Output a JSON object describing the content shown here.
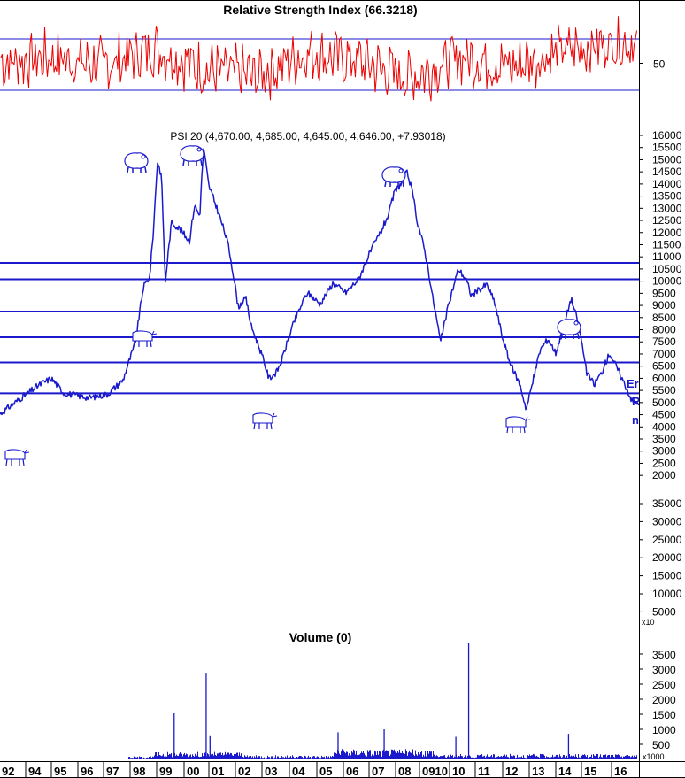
{
  "colors": {
    "rsi_line": "#ee0000",
    "psi_line": "#1a1acc",
    "level_lines": "#1a1acc",
    "volume_bars": "#1a1acc",
    "frame": "#000000",
    "background": "#ffffff"
  },
  "icons": [
    "bear-icon",
    "bull-icon"
  ],
  "chart_data": [
    {
      "type": "line",
      "title": "Relative Strength Index (66.3218)",
      "ylim": [
        0,
        100
      ],
      "reference_lines": [
        30,
        70
      ],
      "tick_labels": [
        "50"
      ],
      "tick_values": [
        50
      ],
      "series": [
        {
          "x": [
            "1992",
            "1994",
            "1996",
            "1998",
            "2000",
            "2002",
            "2004",
            "2006",
            "2008",
            "2010",
            "2012",
            "2014",
            "2016"
          ],
          "y": [
            50,
            55,
            48,
            62,
            45,
            40,
            58,
            52,
            38,
            55,
            47,
            60,
            66.3218
          ]
        }
      ],
      "grid": false
    },
    {
      "type": "line",
      "title": "PSI 20 (4,670.00, 4,685.00, 4,645.00, 4,646.00, +7.93018)",
      "yscale": "log",
      "ylim": [
        4200,
        16200
      ],
      "tick_labels": [
        "16000",
        "15500",
        "15000",
        "14500",
        "14000",
        "13500",
        "13000",
        "12500",
        "12000",
        "11500",
        "11000",
        "10500",
        "10000",
        "9500",
        "9000",
        "8500",
        "8000",
        "7500",
        "7000",
        "6500",
        "6000",
        "5500",
        "5000",
        "4500",
        "4000",
        "3500",
        "3000",
        "2500",
        "2000",
        "35000",
        "30000",
        "25000",
        "20000",
        "15000",
        "10000",
        "5000",
        "x10"
      ],
      "horizontal_levels": [
        8950,
        8300,
        7150,
        6350,
        5650,
        4900
      ],
      "annotations": [
        "Er",
        "R",
        "n"
      ],
      "series": [
        {
          "x": [
            1992.0,
            1992.6,
            1993.5,
            1994.0,
            1994.5,
            1995.5,
            1996.2,
            1996.8,
            1997.3,
            1997.6,
            1997.85,
            1998.0,
            1998.15,
            1998.3,
            1998.45,
            1998.7,
            1999.0,
            1999.4,
            1999.6,
            1999.8,
            1999.95,
            2000.15,
            2000.3,
            2000.6,
            2000.9,
            2001.3,
            2001.6,
            2001.8,
            2002.2,
            2002.5,
            2002.8,
            2003.0,
            2003.5,
            2004.0,
            2004.5,
            2005.0,
            2005.5,
            2006.0,
            2006.5,
            2006.9,
            2007.2,
            2007.4,
            2007.6,
            2007.9,
            2008.1,
            2008.3,
            2008.6,
            2008.9,
            2009.2,
            2009.5,
            2009.9,
            2010.2,
            2010.4,
            2010.7,
            2011.0,
            2011.3,
            2011.6,
            2011.9,
            2012.3,
            2012.55,
            2012.8,
            2013.1,
            2013.4,
            2013.7,
            2014.0,
            2014.3,
            2014.6,
            2014.9,
            2015.2,
            2015.5,
            2015.8,
            2016.1,
            2016.4,
            2016.7
          ],
          "y": [
            4450,
            4700,
            5080,
            5250,
            4900,
            4800,
            4880,
            5200,
            6200,
            8000,
            8400,
            10500,
            14300,
            13400,
            8100,
            10800,
            10500,
            9900,
            11700,
            11100,
            15200,
            12800,
            12200,
            11000,
            9800,
            7300,
            7600,
            6700,
            5900,
            5250,
            5400,
            5700,
            6850,
            7800,
            7400,
            8150,
            7800,
            8300,
            9500,
            10400,
            11300,
            12400,
            12800,
            13600,
            12400,
            10800,
            9400,
            7600,
            6200,
            7300,
            8700,
            8300,
            7700,
            7900,
            8100,
            7500,
            6400,
            5650,
            5100,
            4550,
            5150,
            6000,
            6300,
            5900,
            6600,
            7600,
            6700,
            5400,
            5100,
            5400,
            5900,
            5500,
            5100,
            4700
          ]
        }
      ],
      "grid": false
    },
    {
      "type": "bar",
      "title": "Volume (0)",
      "ylim": [
        0,
        4000
      ],
      "tick_labels": [
        "3500",
        "3000",
        "2500",
        "2000",
        "1500",
        "1000",
        "500",
        "x1000"
      ],
      "tick_values": [
        3500,
        3000,
        2500,
        2000,
        1500,
        1000,
        500
      ],
      "spikes": [
        {
          "x": 1998.8,
          "y": 1550
        },
        {
          "x": 2000.05,
          "y": 2880
        },
        {
          "x": 2000.2,
          "y": 800
        },
        {
          "x": 2005.2,
          "y": 900
        },
        {
          "x": 2007.0,
          "y": 1000
        },
        {
          "x": 2009.8,
          "y": 750
        },
        {
          "x": 2010.3,
          "y": 3870
        },
        {
          "x": 2014.2,
          "y": 850
        }
      ],
      "xlabel": "",
      "x_tick_labels": [
        "92",
        "94",
        "95",
        "96",
        "97",
        "98",
        "99",
        "00",
        "01",
        "02",
        "03",
        "04",
        "05",
        "06",
        "07",
        "08",
        "0910",
        "10",
        "11",
        "12",
        "13",
        "14",
        "15",
        "16"
      ]
    }
  ]
}
